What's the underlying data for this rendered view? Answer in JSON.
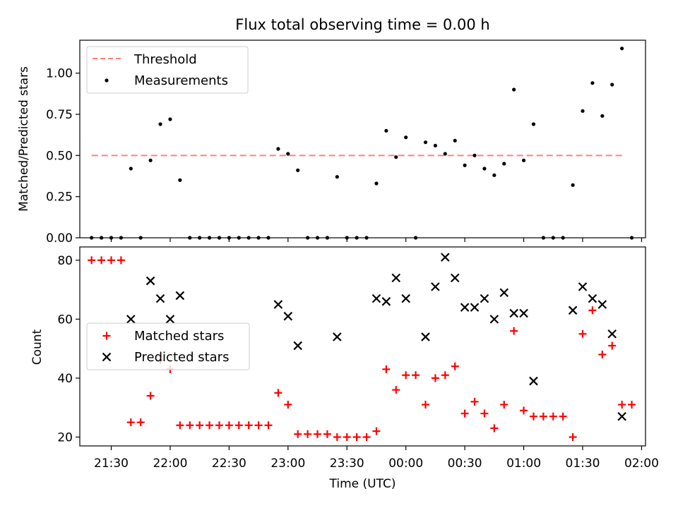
{
  "chart_data": [
    {
      "type": "scatter",
      "title": "Flux total observing time = 0.00 h",
      "ylabel": "Matched/Predicted stars",
      "ylim": [
        0,
        1.2
      ],
      "yticks": [
        0.0,
        0.25,
        0.5,
        0.75,
        1.0
      ],
      "ytick_labels": [
        "0.00",
        "0.25",
        "0.50",
        "0.75",
        "1.00"
      ],
      "legend_position": "upper-left",
      "threshold": {
        "name": "Threshold",
        "value": 0.5,
        "x_start": "21:20",
        "x_end": "01:50",
        "color": "#ff7f7f"
      },
      "series": [
        {
          "name": "Measurements",
          "marker": "dot",
          "color": "#000000",
          "points": [
            [
              "21:20",
              0.0
            ],
            [
              "21:25",
              0.0
            ],
            [
              "21:30",
              0.0
            ],
            [
              "21:35",
              0.0
            ],
            [
              "21:40",
              0.42
            ],
            [
              "21:45",
              0.0
            ],
            [
              "21:50",
              0.47
            ],
            [
              "21:55",
              0.69
            ],
            [
              "22:00",
              0.72
            ],
            [
              "22:05",
              0.35
            ],
            [
              "22:10",
              0.0
            ],
            [
              "22:15",
              0.0
            ],
            [
              "22:20",
              0.0
            ],
            [
              "22:25",
              0.0
            ],
            [
              "22:30",
              0.0
            ],
            [
              "22:35",
              0.0
            ],
            [
              "22:40",
              0.0
            ],
            [
              "22:45",
              0.0
            ],
            [
              "22:50",
              0.0
            ],
            [
              "22:55",
              0.54
            ],
            [
              "23:00",
              0.51
            ],
            [
              "23:05",
              0.41
            ],
            [
              "23:10",
              0.0
            ],
            [
              "23:15",
              0.0
            ],
            [
              "23:20",
              0.0
            ],
            [
              "23:25",
              0.37
            ],
            [
              "23:30",
              0.0
            ],
            [
              "23:35",
              0.0
            ],
            [
              "23:40",
              0.0
            ],
            [
              "23:45",
              0.33
            ],
            [
              "23:50",
              0.65
            ],
            [
              "23:55",
              0.49
            ],
            [
              "00:00",
              0.61
            ],
            [
              "00:05",
              0.0
            ],
            [
              "00:10",
              0.58
            ],
            [
              "00:15",
              0.56
            ],
            [
              "00:20",
              0.51
            ],
            [
              "00:25",
              0.59
            ],
            [
              "00:30",
              0.44
            ],
            [
              "00:35",
              0.5
            ],
            [
              "00:40",
              0.42
            ],
            [
              "00:45",
              0.38
            ],
            [
              "00:50",
              0.45
            ],
            [
              "00:55",
              0.9
            ],
            [
              "01:00",
              0.47
            ],
            [
              "01:05",
              0.69
            ],
            [
              "01:10",
              0.0
            ],
            [
              "01:15",
              0.0
            ],
            [
              "01:20",
              0.0
            ],
            [
              "01:25",
              0.32
            ],
            [
              "01:30",
              0.77
            ],
            [
              "01:35",
              0.94
            ],
            [
              "01:40",
              0.74
            ],
            [
              "01:45",
              0.93
            ],
            [
              "01:50",
              1.15
            ],
            [
              "01:55",
              0.0
            ]
          ]
        }
      ]
    },
    {
      "type": "scatter",
      "xlabel": "Time (UTC)",
      "ylabel": "Count",
      "ylim": [
        17,
        84.5
      ],
      "yticks": [
        20,
        40,
        60,
        80
      ],
      "ytick_labels": [
        "20",
        "40",
        "60",
        "80"
      ],
      "xticks": [
        "21:30",
        "22:00",
        "22:30",
        "23:00",
        "23:30",
        "00:00",
        "00:30",
        "01:00",
        "01:30",
        "02:00"
      ],
      "legend_position": "center-left",
      "series": [
        {
          "name": "Matched stars",
          "marker": "plus",
          "color": "#ff0000",
          "points": [
            [
              "21:20",
              80
            ],
            [
              "21:25",
              80
            ],
            [
              "21:30",
              80
            ],
            [
              "21:35",
              80
            ],
            [
              "21:40",
              25
            ],
            [
              "21:45",
              25
            ],
            [
              "21:50",
              34
            ],
            [
              "21:55",
              46
            ],
            [
              "22:00",
              43
            ],
            [
              "22:05",
              24
            ],
            [
              "22:10",
              24
            ],
            [
              "22:15",
              24
            ],
            [
              "22:20",
              24
            ],
            [
              "22:25",
              24
            ],
            [
              "22:30",
              24
            ],
            [
              "22:35",
              24
            ],
            [
              "22:40",
              24
            ],
            [
              "22:45",
              24
            ],
            [
              "22:50",
              24
            ],
            [
              "22:55",
              35
            ],
            [
              "23:00",
              31
            ],
            [
              "23:05",
              21
            ],
            [
              "23:10",
              21
            ],
            [
              "23:15",
              21
            ],
            [
              "23:20",
              21
            ],
            [
              "23:25",
              20
            ],
            [
              "23:30",
              20
            ],
            [
              "23:35",
              20
            ],
            [
              "23:40",
              20
            ],
            [
              "23:45",
              22
            ],
            [
              "23:50",
              43
            ],
            [
              "23:55",
              36
            ],
            [
              "00:00",
              41
            ],
            [
              "00:05",
              41
            ],
            [
              "00:10",
              31
            ],
            [
              "00:15",
              40
            ],
            [
              "00:20",
              41
            ],
            [
              "00:25",
              44
            ],
            [
              "00:30",
              28
            ],
            [
              "00:35",
              32
            ],
            [
              "00:40",
              28
            ],
            [
              "00:45",
              23
            ],
            [
              "00:50",
              31
            ],
            [
              "00:55",
              56
            ],
            [
              "01:00",
              29
            ],
            [
              "01:05",
              27
            ],
            [
              "01:10",
              27
            ],
            [
              "01:15",
              27
            ],
            [
              "01:20",
              27
            ],
            [
              "01:25",
              20
            ],
            [
              "01:30",
              55
            ],
            [
              "01:35",
              63
            ],
            [
              "01:40",
              48
            ],
            [
              "01:45",
              51
            ],
            [
              "01:50",
              31
            ],
            [
              "01:55",
              31
            ]
          ]
        },
        {
          "name": "Predicted stars",
          "marker": "x",
          "color": "#000000",
          "points": [
            [
              "21:40",
              60
            ],
            [
              "21:50",
              73
            ],
            [
              "21:55",
              67
            ],
            [
              "22:00",
              60
            ],
            [
              "22:05",
              68
            ],
            [
              "22:55",
              65
            ],
            [
              "23:00",
              61
            ],
            [
              "23:05",
              51
            ],
            [
              "23:25",
              54
            ],
            [
              "23:45",
              67
            ],
            [
              "23:50",
              66
            ],
            [
              "23:55",
              74
            ],
            [
              "00:00",
              67
            ],
            [
              "00:10",
              54
            ],
            [
              "00:15",
              71
            ],
            [
              "00:20",
              81
            ],
            [
              "00:25",
              74
            ],
            [
              "00:30",
              64
            ],
            [
              "00:35",
              64
            ],
            [
              "00:40",
              67
            ],
            [
              "00:45",
              60
            ],
            [
              "00:50",
              69
            ],
            [
              "00:55",
              62
            ],
            [
              "01:00",
              62
            ],
            [
              "01:05",
              39
            ],
            [
              "01:25",
              63
            ],
            [
              "01:30",
              71
            ],
            [
              "01:35",
              67
            ],
            [
              "01:40",
              65
            ],
            [
              "01:45",
              55
            ],
            [
              "01:50",
              27
            ]
          ]
        }
      ]
    }
  ]
}
